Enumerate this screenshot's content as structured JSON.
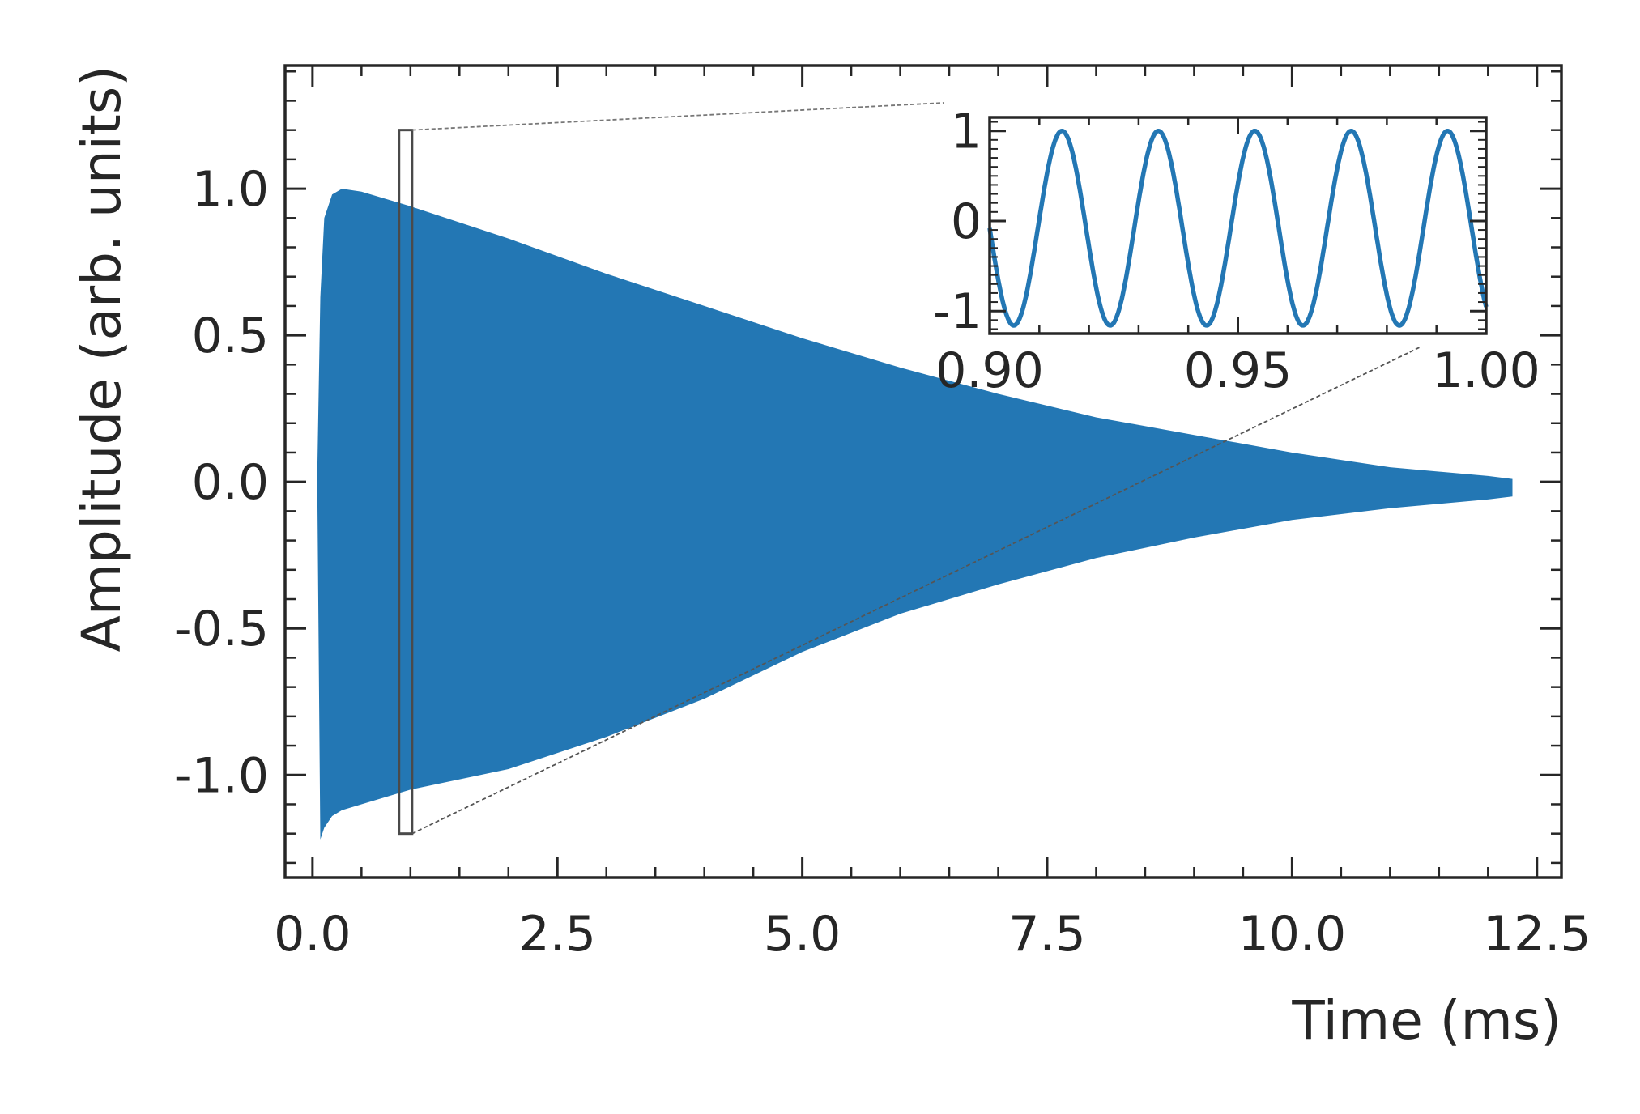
{
  "chart_data": [
    {
      "type": "line",
      "role": "main",
      "xlabel": "Time (ms)",
      "ylabel": "Amplitude (arb. units)",
      "xlim": [
        -0.28,
        12.75
      ],
      "ylim": [
        -1.35,
        1.42
      ],
      "xticks": [
        0.0,
        2.5,
        5.0,
        7.5,
        10.0,
        12.5
      ],
      "xtick_labels": [
        "0.0",
        "2.5",
        "5.0",
        "7.5",
        "10.0",
        "12.5"
      ],
      "yticks": [
        -1.0,
        -0.5,
        0.0,
        0.5,
        1.0
      ],
      "ytick_labels": [
        "-1.0",
        "-0.5",
        "0.0",
        "0.5",
        "1.0"
      ],
      "grid": false,
      "series_color": "#2377b4",
      "envelope": {
        "x": [
          0.05,
          0.08,
          0.12,
          0.2,
          0.3,
          0.5,
          1.0,
          2.0,
          3.0,
          4.0,
          5.0,
          6.0,
          7.0,
          8.0,
          9.0,
          10.0,
          11.0,
          12.0,
          12.25
        ],
        "upper": [
          0.05,
          0.63,
          0.9,
          0.98,
          1.0,
          0.99,
          0.94,
          0.83,
          0.71,
          0.6,
          0.49,
          0.39,
          0.3,
          0.22,
          0.16,
          0.1,
          0.05,
          0.02,
          0.01
        ],
        "lower": [
          -0.05,
          -1.22,
          -1.18,
          -1.14,
          -1.12,
          -1.1,
          -1.05,
          -0.98,
          -0.87,
          -0.74,
          -0.58,
          -0.45,
          -0.35,
          -0.26,
          -0.19,
          -0.13,
          -0.09,
          -0.06,
          -0.05
        ]
      },
      "zoom_box": {
        "x": [
          0.9,
          1.0
        ],
        "y": [
          -1.2,
          1.2
        ]
      }
    },
    {
      "type": "line",
      "role": "inset",
      "xlim": [
        0.9,
        1.0
      ],
      "ylim": [
        -1.25,
        1.15
      ],
      "xticks": [
        0.9,
        0.95,
        1.0
      ],
      "xtick_labels": [
        "0.90",
        "0.95",
        "1.00"
      ],
      "yticks": [
        -1,
        0,
        1
      ],
      "ytick_labels": [
        "-1",
        "0",
        "1"
      ],
      "series_color": "#2377b4",
      "signal": {
        "frequency_khz": 51.5,
        "amplitude": 1.08,
        "offset": -0.08,
        "zero_crossing_x": 0.9
      }
    }
  ]
}
